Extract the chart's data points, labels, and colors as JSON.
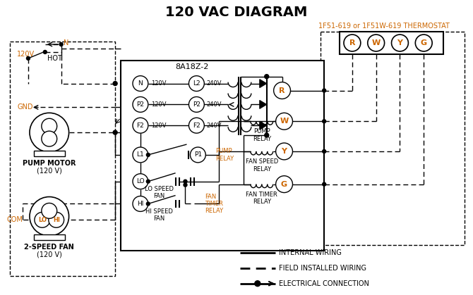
{
  "title": "120 VAC DIAGRAM",
  "title_color": "#000000",
  "title_fontsize": 14,
  "background_color": "#ffffff",
  "text_color": "#000000",
  "orange_color": "#cc6600",
  "line_color": "#000000",
  "thermostat_label": "1F51-619 or 1F51W-619 THERMOSTAT",
  "control_box_label": "8A18Z-2",
  "terminals": [
    "R",
    "W",
    "Y",
    "G"
  ],
  "legend_items": [
    {
      "label": "INTERNAL WIRING",
      "style": "solid"
    },
    {
      "label": "FIELD INSTALLED WIRING",
      "style": "dashed"
    },
    {
      "label": "ELECTRICAL CONNECTION",
      "style": "dot_arrow"
    }
  ]
}
